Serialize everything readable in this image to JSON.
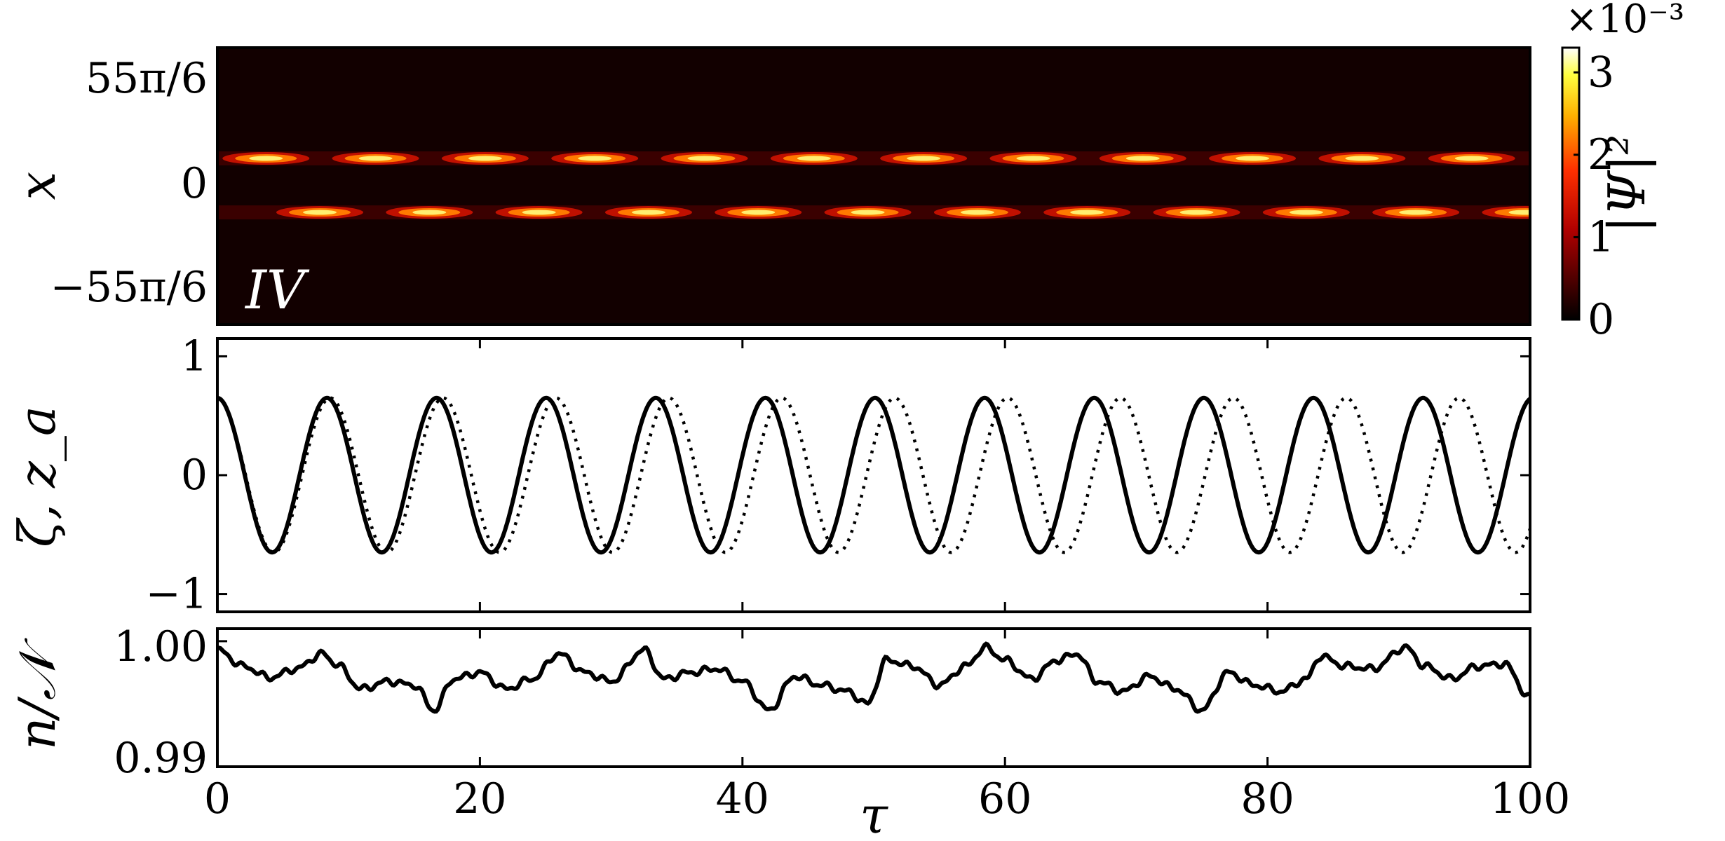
{
  "chart_data": [
    {
      "type": "heatmap",
      "panel_label": "IV",
      "xlim": [
        0,
        100
      ],
      "ylabel": "x",
      "y_ticks": [
        "55π/6",
        "0",
        "−55π/6"
      ],
      "colorbar": {
        "label": "|Ψ|²",
        "ticks": [
          "0",
          "1",
          "2",
          "3"
        ],
        "multiplier": "×10⁻³",
        "range": [
          0,
          3.3
        ]
      },
      "bands": [
        {
          "name": "upper",
          "y_fraction": 0.4,
          "peak_period": 8.35,
          "phase": 3.7
        },
        {
          "name": "lower",
          "y_fraction": 0.595,
          "peak_period": 8.35,
          "phase": 7.8
        }
      ],
      "peak_value": 3.3
    },
    {
      "type": "line",
      "ylabel": "ζ, z_a",
      "xlim": [
        0,
        100
      ],
      "ylim": [
        -1.15,
        1.15
      ],
      "y_ticks": [
        "1",
        "0",
        "−1"
      ],
      "series": [
        {
          "style": "solid",
          "amplitude": 0.65,
          "period": 8.35
        },
        {
          "style": "dotted",
          "amplitude": 0.65,
          "period": 8.6
        }
      ]
    },
    {
      "type": "line",
      "ylabel": "n/𝒩",
      "xlabel": "τ",
      "xlim": [
        0,
        100
      ],
      "ylim": [
        0.99,
        1.001
      ],
      "y_ticks": [
        "1.00",
        "0.99"
      ],
      "x_ticks": [
        "0",
        "20",
        "40",
        "60",
        "80",
        "100"
      ],
      "series": [
        {
          "style": "solid",
          "x": [
            0,
            2,
            4,
            6,
            8,
            9,
            11,
            13,
            15,
            16.5,
            18,
            20,
            22,
            24,
            26,
            28,
            30,
            32.5,
            34,
            36,
            38,
            40,
            42,
            44,
            46,
            48,
            49.5,
            51,
            53,
            55,
            57,
            58.5,
            60,
            62,
            64,
            65.5,
            67,
            69,
            71,
            73,
            75,
            77,
            79,
            81,
            83,
            84,
            86,
            88,
            90.5,
            92,
            94,
            96,
            98,
            100
          ],
          "y": [
            0.9993,
            0.998,
            0.9971,
            0.9978,
            0.999,
            0.9982,
            0.9962,
            0.9968,
            0.9965,
            0.9945,
            0.997,
            0.9975,
            0.9962,
            0.997,
            0.999,
            0.9975,
            0.9968,
            0.9993,
            0.997,
            0.9975,
            0.9978,
            0.9968,
            0.9945,
            0.9972,
            0.9965,
            0.996,
            0.995,
            0.9985,
            0.998,
            0.9965,
            0.998,
            0.9995,
            0.9985,
            0.997,
            0.9985,
            0.999,
            0.9968,
            0.996,
            0.9972,
            0.9962,
            0.9945,
            0.9975,
            0.9965,
            0.996,
            0.997,
            0.9988,
            0.998,
            0.9978,
            0.9995,
            0.998,
            0.997,
            0.998,
            0.9982,
            0.9955
          ]
        }
      ]
    }
  ]
}
